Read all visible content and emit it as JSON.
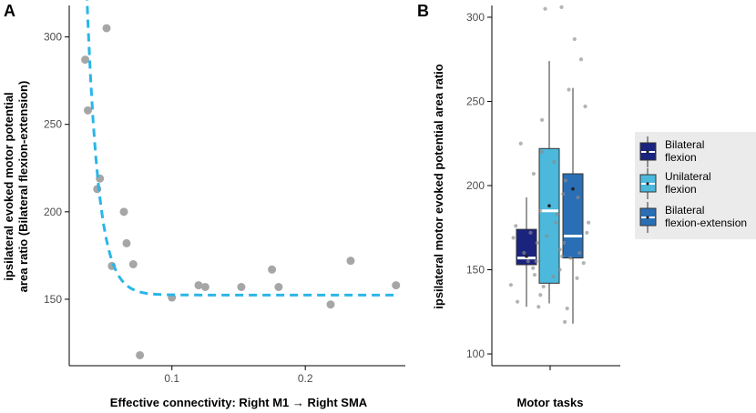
{
  "chart_data": [
    {
      "type": "scatter",
      "panel_label": "A",
      "xlabel": "Effective connectivity: Right M1 → Right SMA",
      "ylabel_line1": "ipsilateral evoked motor potential",
      "ylabel_line2": "area ratio (Bilateral flexion-extension)",
      "xlim": [
        0.023,
        0.275
      ],
      "ylim": [
        112,
        318
      ],
      "x_ticks": [
        0.1,
        0.2
      ],
      "x_tick_labels": [
        "0.1",
        "0.2"
      ],
      "y_ticks": [
        150,
        200,
        250,
        300
      ],
      "y_tick_labels": [
        "150",
        "200",
        "250",
        "300"
      ],
      "point_color": "#a6a6a6",
      "fit_color": "#29b6e8",
      "fit": {
        "type": "exponential_decay",
        "a": 152.4,
        "b": 11000,
        "k": 115
      },
      "points": [
        {
          "x": 0.035,
          "y": 287
        },
        {
          "x": 0.037,
          "y": 258
        },
        {
          "x": 0.044,
          "y": 213
        },
        {
          "x": 0.046,
          "y": 219
        },
        {
          "x": 0.051,
          "y": 305
        },
        {
          "x": 0.055,
          "y": 169
        },
        {
          "x": 0.064,
          "y": 200
        },
        {
          "x": 0.066,
          "y": 182
        },
        {
          "x": 0.071,
          "y": 170
        },
        {
          "x": 0.076,
          "y": 118
        },
        {
          "x": 0.1,
          "y": 151
        },
        {
          "x": 0.12,
          "y": 158
        },
        {
          "x": 0.125,
          "y": 157
        },
        {
          "x": 0.152,
          "y": 157
        },
        {
          "x": 0.175,
          "y": 167
        },
        {
          "x": 0.18,
          "y": 157
        },
        {
          "x": 0.219,
          "y": 147
        },
        {
          "x": 0.234,
          "y": 172
        },
        {
          "x": 0.268,
          "y": 158
        }
      ]
    },
    {
      "type": "box",
      "panel_label": "B",
      "xlabel": "Motor tasks",
      "ylabel": "ipsilateral motor evoked potential area ratio",
      "ylim": [
        93,
        307
      ],
      "y_ticks": [
        100,
        150,
        200,
        250,
        300
      ],
      "y_tick_labels": [
        "100",
        "150",
        "200",
        "250",
        "300"
      ],
      "groups": [
        {
          "name": "Bilateral flexion",
          "legend_line1": "Bilateral",
          "legend_line2": "flexion",
          "color": "#1a237e",
          "q1": 153,
          "median": 157,
          "q3": 174,
          "whisker_low": 128,
          "whisker_high": 193,
          "mean": 158
        },
        {
          "name": "Unilateral flexion",
          "legend_line1": "Unilateral",
          "legend_line2": "flexion",
          "color": "#4bb8dc",
          "q1": 142,
          "median": 185,
          "q3": 222,
          "whisker_low": 130,
          "whisker_high": 274,
          "mean": 188
        },
        {
          "name": "Bilateral flexion-extension",
          "legend_line1": "Bilateral",
          "legend_line2": "flexion-extension",
          "color": "#2a6fb5",
          "q1": 157,
          "median": 170,
          "q3": 207,
          "whisker_low": 118,
          "whisker_high": 258,
          "mean": 198
        }
      ],
      "jitter_points": [
        {
          "group": 0,
          "y": 141
        },
        {
          "group": 0,
          "y": 135
        },
        {
          "group": 0,
          "y": 131
        },
        {
          "group": 0,
          "y": 151
        },
        {
          "group": 0,
          "y": 160
        },
        {
          "group": 0,
          "y": 166
        },
        {
          "group": 0,
          "y": 169
        },
        {
          "group": 0,
          "y": 172
        },
        {
          "group": 0,
          "y": 225
        },
        {
          "group": 0,
          "y": 239
        },
        {
          "group": 0,
          "y": 176
        },
        {
          "group": 0,
          "y": 155
        },
        {
          "group": 0,
          "y": 147
        },
        {
          "group": 1,
          "y": 305
        },
        {
          "group": 1,
          "y": 306
        },
        {
          "group": 1,
          "y": 220
        },
        {
          "group": 1,
          "y": 214
        },
        {
          "group": 1,
          "y": 207
        },
        {
          "group": 1,
          "y": 195
        },
        {
          "group": 1,
          "y": 185
        },
        {
          "group": 1,
          "y": 178
        },
        {
          "group": 1,
          "y": 170
        },
        {
          "group": 1,
          "y": 162
        },
        {
          "group": 1,
          "y": 155
        },
        {
          "group": 1,
          "y": 146
        },
        {
          "group": 1,
          "y": 140
        },
        {
          "group": 1,
          "y": 119
        },
        {
          "group": 1,
          "y": 128
        },
        {
          "group": 2,
          "y": 287
        },
        {
          "group": 2,
          "y": 275
        },
        {
          "group": 2,
          "y": 257
        },
        {
          "group": 2,
          "y": 247
        },
        {
          "group": 2,
          "y": 203
        },
        {
          "group": 2,
          "y": 193
        },
        {
          "group": 2,
          "y": 183
        },
        {
          "group": 2,
          "y": 172
        },
        {
          "group": 2,
          "y": 166
        },
        {
          "group": 2,
          "y": 160
        },
        {
          "group": 2,
          "y": 157
        },
        {
          "group": 2,
          "y": 154
        },
        {
          "group": 2,
          "y": 150
        },
        {
          "group": 2,
          "y": 145
        },
        {
          "group": 2,
          "y": 127
        },
        {
          "group": 2,
          "y": 178
        },
        {
          "group": 2,
          "y": 158
        }
      ]
    }
  ]
}
